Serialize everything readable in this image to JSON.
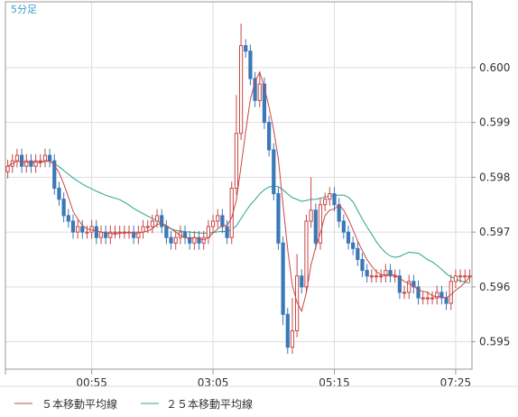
{
  "chart_data": {
    "type": "candlestick",
    "title": "5分足",
    "y_ticks": [
      0.6,
      0.599,
      0.598,
      0.597,
      0.596,
      0.595
    ],
    "y_tick_labels": [
      "0.600",
      "0.599",
      "0.598",
      "0.597",
      "0.596",
      "0.595"
    ],
    "ylim": [
      0.5945,
      0.6012
    ],
    "x_ticks": [
      "00:55",
      "03:05",
      "05:15",
      "07:25"
    ],
    "grid": true,
    "legend_position": "bottom-left",
    "colors": {
      "up": "#c84848",
      "down": "#3a78b8",
      "ma5": "#c84848",
      "ma25": "#26a68a",
      "grid": "#dddddd",
      "axis": "#999999",
      "title": "#37a0c8"
    },
    "series": [
      {
        "name": "candles",
        "closes": [
          0.5982,
          0.5983,
          0.5984,
          0.5982,
          0.5983,
          0.5982,
          0.5983,
          0.5983,
          0.5984,
          0.5983,
          0.5978,
          0.5976,
          0.5973,
          0.5972,
          0.597,
          0.5971,
          0.597,
          0.597,
          0.5971,
          0.5969,
          0.597,
          0.5969,
          0.597,
          0.597,
          0.597,
          0.597,
          0.597,
          0.5969,
          0.597,
          0.5971,
          0.5971,
          0.5972,
          0.5973,
          0.5971,
          0.5969,
          0.5968,
          0.5969,
          0.597,
          0.5969,
          0.5968,
          0.5969,
          0.5968,
          0.5969,
          0.5971,
          0.5972,
          0.5973,
          0.5971,
          0.5969,
          0.5978,
          0.5988,
          0.6004,
          0.6003,
          0.5998,
          0.5994,
          0.5997,
          0.599,
          0.5985,
          0.5977,
          0.5968,
          0.5955,
          0.5949,
          0.5952,
          0.5962,
          0.596,
          0.5972,
          0.5974,
          0.5968,
          0.5975,
          0.5976,
          0.5977,
          0.5975,
          0.5972,
          0.597,
          0.5968,
          0.5967,
          0.5965,
          0.5963,
          0.5962,
          0.5962,
          0.5962,
          0.5962,
          0.5963,
          0.5962,
          0.5962,
          0.5959,
          0.5959,
          0.5961,
          0.596,
          0.5958,
          0.5958,
          0.5958,
          0.5958,
          0.5959,
          0.5958,
          0.5957,
          0.5961,
          0.5962,
          0.5962,
          0.5962,
          0.5962
        ],
        "close_approx": true
      },
      {
        "name": "５本移動平均線"
      },
      {
        "name": "２５本移動平均線"
      }
    ],
    "legend": [
      "５本移動平均線",
      "２５本移動平均線"
    ]
  }
}
